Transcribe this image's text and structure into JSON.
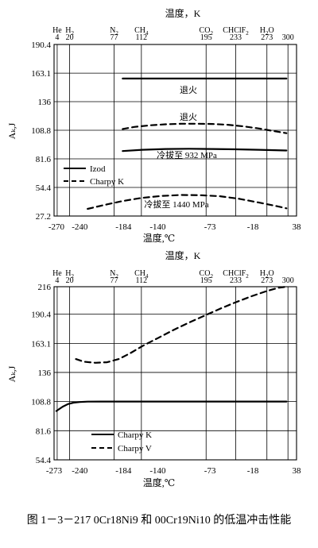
{
  "figure_caption": "图 1－3－217  0Cr18Ni9 和 00Cr19Ni10 的低温冲击性能",
  "chart_data": [
    {
      "type": "line",
      "title": "温度，K",
      "xlabel": "温度,℃",
      "ylabel": "Aₖ,J",
      "xlim": [
        -273,
        38
      ],
      "ylim": [
        27.2,
        190.4
      ],
      "x_ticks": [
        -270,
        -240,
        -184,
        -140,
        -73,
        -18,
        38
      ],
      "x_tick_labels": [
        "-270",
        "-240",
        "-184",
        "-140",
        "-73",
        "-18",
        "38"
      ],
      "y_ticks": [
        27.2,
        54.4,
        81.6,
        108.8,
        136,
        163.1,
        190.4
      ],
      "y_tick_labels": [
        "27.2",
        "54.4",
        "81.6",
        "108.8",
        "136",
        "163.1",
        "190.4"
      ],
      "top_axis": {
        "kelvin": [
          4,
          20,
          77,
          112,
          195,
          233,
          273,
          300
        ],
        "kelvin_labels": [
          "4",
          "20",
          "77",
          "112",
          "195",
          "233",
          "273",
          "300"
        ],
        "substance_labels": [
          {
            "name": "He",
            "sub": "",
            "tail": "",
            "at_kelvin": 4
          },
          {
            "name": "H",
            "sub": "2",
            "tail": "",
            "at_kelvin": 20
          },
          {
            "name": "N",
            "sub": "2",
            "tail": "",
            "at_kelvin": 77
          },
          {
            "name": "CH",
            "sub": "4",
            "tail": "",
            "at_kelvin": 112
          },
          {
            "name": "CO",
            "sub": "2",
            "tail": "",
            "at_kelvin": 195
          },
          {
            "name": "CHClF",
            "sub": "2",
            "tail": "",
            "at_kelvin": 233
          },
          {
            "name": "H",
            "sub": "2",
            "tail": "O",
            "at_kelvin": 273
          }
        ]
      },
      "grid": true,
      "legend_position": "lower-left",
      "series": [
        {
          "name": "Izod",
          "style": "solid",
          "label": "退火",
          "x": [
            -185,
            25
          ],
          "y": [
            158,
            158
          ]
        },
        {
          "name": "Charpy K",
          "style": "dashed",
          "label": "退火",
          "x": [
            -185,
            -170,
            -150,
            -130,
            -110,
            -90,
            -70,
            -50,
            -30,
            -10,
            5,
            25
          ],
          "y": [
            110,
            112,
            113.5,
            114.5,
            115,
            115,
            114.8,
            114,
            112.5,
            110.5,
            108.5,
            106
          ]
        },
        {
          "name": "Izod",
          "style": "solid",
          "label": "冷拔至 932 MPa",
          "x": [
            -185,
            -160,
            -130,
            -100,
            -70,
            -40,
            -10,
            25
          ],
          "y": [
            89,
            90.2,
            91,
            91.2,
            91,
            90.7,
            90.2,
            89.5
          ]
        },
        {
          "name": "Charpy K",
          "style": "dashed",
          "label": "冷拔至 1440 MPa",
          "x": [
            -230,
            -210,
            -185,
            -160,
            -135,
            -110,
            -85,
            -60,
            -35,
            -10,
            10,
            25
          ],
          "y": [
            34,
            37.5,
            41.5,
            44.5,
            46.3,
            47.2,
            47,
            46,
            43.5,
            40,
            37,
            34.5
          ]
        }
      ],
      "legend": [
        {
          "name": "Izod",
          "style": "solid"
        },
        {
          "name": "Charpy K",
          "style": "dashed"
        }
      ]
    },
    {
      "type": "line",
      "title": "温度，K",
      "xlabel": "温度,℃",
      "ylabel": "Aₖ,J",
      "xlim": [
        -273,
        38
      ],
      "ylim": [
        54.4,
        216
      ],
      "x_ticks": [
        -273,
        -240,
        -184,
        -140,
        -73,
        -18,
        38
      ],
      "x_tick_labels": [
        "-273",
        "-240",
        "-184",
        "-140",
        "-73",
        "-18",
        "38"
      ],
      "y_ticks": [
        54.4,
        81.6,
        108.8,
        136,
        163.1,
        190.4,
        216
      ],
      "y_tick_labels": [
        "54.4",
        "81.6",
        "108.8",
        "136",
        "163.1",
        "190.4",
        "216"
      ],
      "top_axis": {
        "kelvin": [
          4,
          20,
          77,
          112,
          195,
          233,
          273,
          300
        ],
        "kelvin_labels": [
          "4",
          "20",
          "77",
          "112",
          "195",
          "233",
          "273",
          "300"
        ],
        "substance_labels": [
          {
            "name": "He",
            "sub": "",
            "tail": "",
            "at_kelvin": 4
          },
          {
            "name": "H",
            "sub": "2",
            "tail": "",
            "at_kelvin": 20
          },
          {
            "name": "N",
            "sub": "2",
            "tail": "",
            "at_kelvin": 77
          },
          {
            "name": "CH",
            "sub": "4",
            "tail": "",
            "at_kelvin": 112
          },
          {
            "name": "CO",
            "sub": "2",
            "tail": "",
            "at_kelvin": 195
          },
          {
            "name": "CHClF",
            "sub": "2",
            "tail": "",
            "at_kelvin": 233
          },
          {
            "name": "H",
            "sub": "2",
            "tail": "O",
            "at_kelvin": 273
          }
        ]
      },
      "grid": true,
      "legend_position": "lower-left",
      "series": [
        {
          "name": "Charpy K",
          "style": "solid",
          "label": "",
          "x": [
            -270,
            -262,
            -255,
            -248,
            -240,
            -230,
            -210,
            -180,
            -140,
            -100,
            -50,
            0,
            25
          ],
          "y": [
            100,
            104,
            106.5,
            107.8,
            108.4,
            108.7,
            108.8,
            108.8,
            108.8,
            108.8,
            108.8,
            108.8,
            108.8
          ]
        },
        {
          "name": "Charpy V",
          "style": "dashed",
          "label": "",
          "x": [
            -245,
            -235,
            -220,
            -205,
            -190,
            -175,
            -160,
            -140,
            -120,
            -100,
            -80,
            -60,
            -40,
            -20,
            0,
            15,
            25
          ],
          "y": [
            148.5,
            146,
            145,
            145.5,
            148.5,
            154,
            160.5,
            168,
            175.5,
            182.5,
            189,
            195.5,
            201.5,
            207,
            212,
            215,
            216
          ]
        }
      ],
      "legend": [
        {
          "name": "Charpy K",
          "style": "solid"
        },
        {
          "name": "Charpy V",
          "style": "dashed"
        }
      ]
    }
  ]
}
